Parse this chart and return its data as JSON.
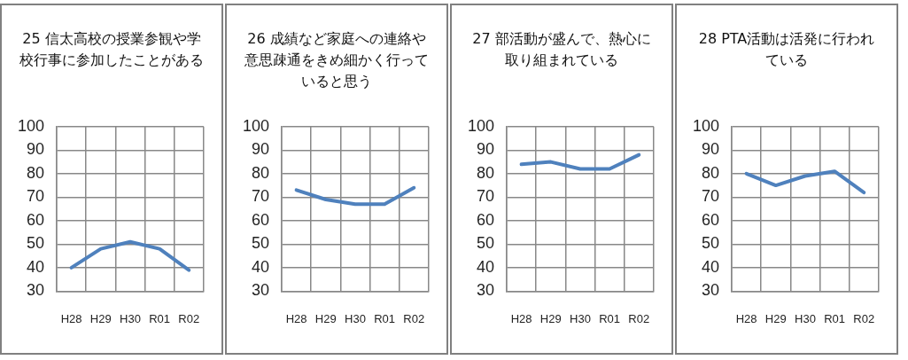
{
  "chart_data": [
    {
      "type": "line",
      "title": "25 信太高校の授業参観や学校行事に参加したことがある",
      "categories": [
        "H28",
        "H29",
        "H30",
        "R01",
        "R02"
      ],
      "series": [
        {
          "color": "#4f81bd",
          "values": [
            40,
            48,
            51,
            48,
            39
          ]
        }
      ],
      "ylim": [
        30,
        100
      ],
      "yticks": [
        30,
        40,
        50,
        60,
        70,
        80,
        90,
        100
      ],
      "grid": true,
      "legend": false
    },
    {
      "type": "line",
      "title": "26 成績など家庭への連絡や意思疎通をきめ細かく行っていると思う",
      "categories": [
        "H28",
        "H29",
        "H30",
        "R01",
        "R02"
      ],
      "series": [
        {
          "color": "#4f81bd",
          "values": [
            73,
            69,
            67,
            67,
            74
          ]
        }
      ],
      "ylim": [
        30,
        100
      ],
      "yticks": [
        30,
        40,
        50,
        60,
        70,
        80,
        90,
        100
      ],
      "grid": true,
      "legend": false
    },
    {
      "type": "line",
      "title": "27 部活動が盛んで、熱心に取り組まれている",
      "categories": [
        "H28",
        "H29",
        "H30",
        "R01",
        "R02"
      ],
      "series": [
        {
          "color": "#4f81bd",
          "values": [
            84,
            85,
            82,
            82,
            88
          ]
        }
      ],
      "ylim": [
        30,
        100
      ],
      "yticks": [
        30,
        40,
        50,
        60,
        70,
        80,
        90,
        100
      ],
      "grid": true,
      "legend": false
    },
    {
      "type": "line",
      "title": "28 PTA活動は活発に行われている",
      "categories": [
        "H28",
        "H29",
        "H30",
        "R01",
        "R02"
      ],
      "series": [
        {
          "color": "#4f81bd",
          "values": [
            80,
            75,
            79,
            81,
            72
          ]
        }
      ],
      "ylim": [
        30,
        100
      ],
      "yticks": [
        30,
        40,
        50,
        60,
        70,
        80,
        90,
        100
      ],
      "grid": true,
      "legend": false
    }
  ]
}
